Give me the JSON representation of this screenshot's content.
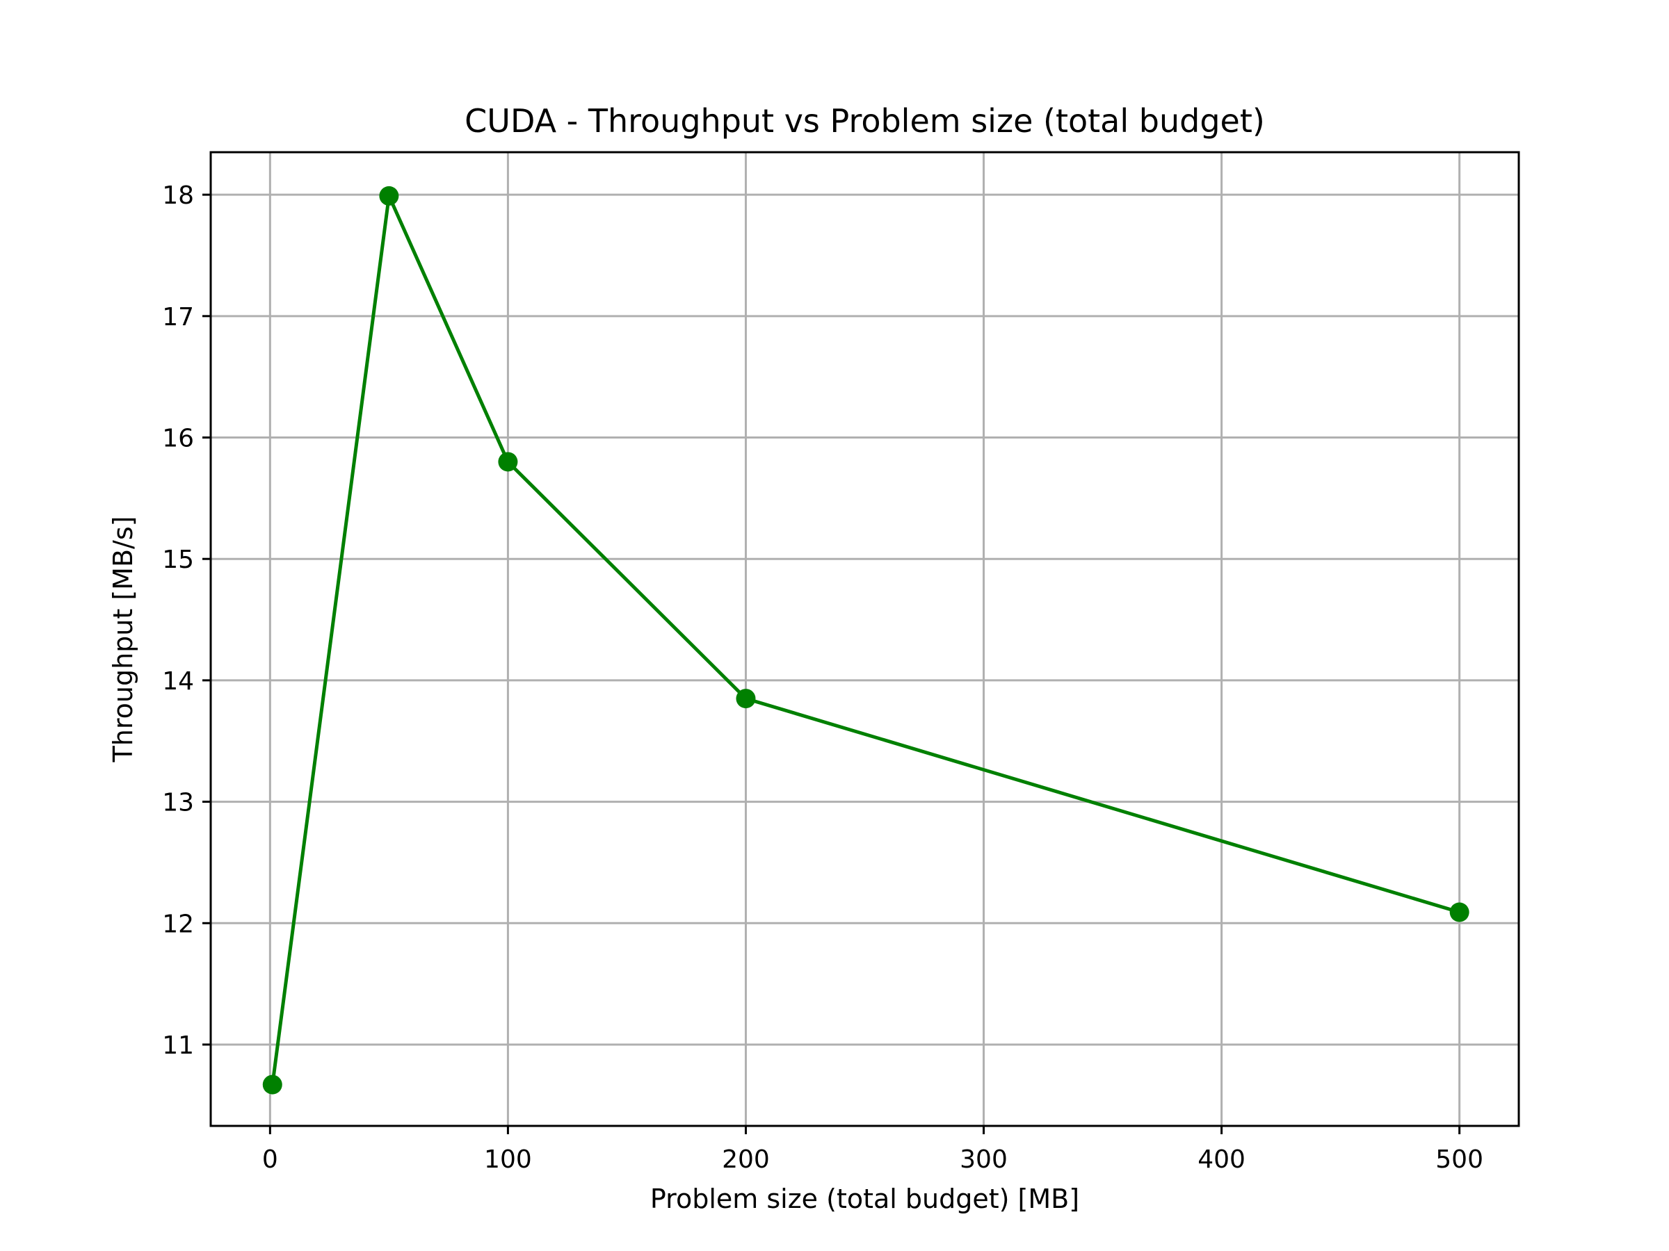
{
  "chart_data": {
    "type": "line",
    "title": "CUDA - Throughput vs Problem size (total budget)",
    "xlabel": "Problem size (total budget) [MB]",
    "ylabel": "Throughput [MB/s]",
    "xlim": [
      -24.95,
      524.95
    ],
    "ylim": [
      10.33,
      18.35
    ],
    "xticks": [
      0,
      100,
      200,
      300,
      400,
      500
    ],
    "yticks": [
      11,
      12,
      13,
      14,
      15,
      16,
      17,
      18
    ],
    "grid": true,
    "series": [
      {
        "color": "#008000",
        "marker": "circle",
        "x": [
          1,
          50,
          100,
          200,
          500
        ],
        "y": [
          10.67,
          17.99,
          15.8,
          13.85,
          12.09
        ]
      }
    ]
  }
}
